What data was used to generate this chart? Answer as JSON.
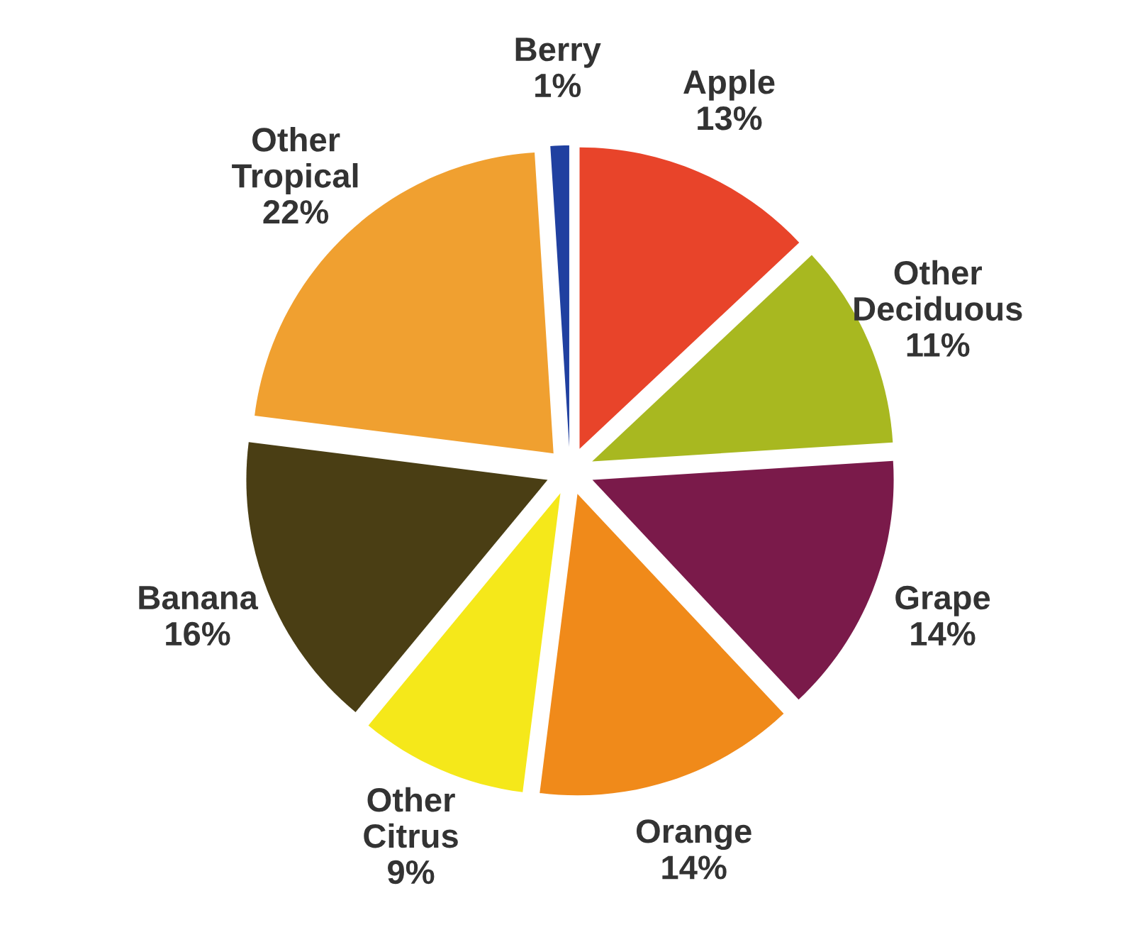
{
  "chart_data": {
    "type": "pie",
    "categories": [
      "Apple",
      "Other Deciduous",
      "Grape",
      "Orange",
      "Other Citrus",
      "Banana",
      "Other Tropical",
      "Berry"
    ],
    "values": [
      13,
      11,
      14,
      14,
      9,
      16,
      22,
      1
    ],
    "value_labels": [
      "13%",
      "11%",
      "14%",
      "14%",
      "9%",
      "16%",
      "22%",
      "1%"
    ],
    "colors": [
      "#e8442a",
      "#a8b820",
      "#7a1a4a",
      "#f08a1a",
      "#f5e81a",
      "#4a3e14",
      "#f0a030",
      "#2040a0"
    ]
  }
}
